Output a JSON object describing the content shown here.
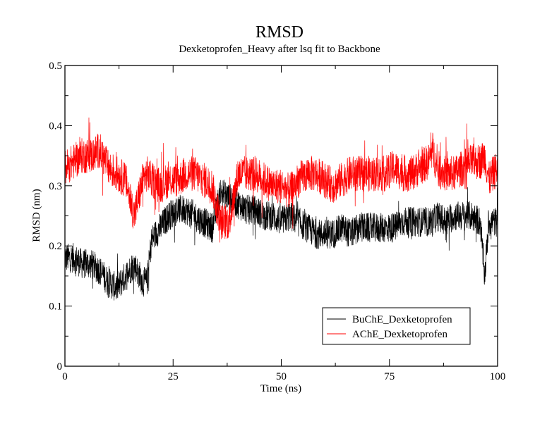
{
  "chart_data": {
    "type": "line",
    "title": "RMSD",
    "subtitle": "Dexketoprofen_Heavy after lsq fit to Backbone",
    "xlabel": "Time (ns)",
    "ylabel": "RMSD (nm)",
    "xlim": [
      0,
      100
    ],
    "ylim": [
      0,
      0.5
    ],
    "xticks": [
      0,
      25,
      50,
      75,
      100
    ],
    "xtick_labels": [
      "0",
      "25",
      "50",
      "75",
      "100"
    ],
    "yticks": [
      0,
      0.1,
      0.2,
      0.3,
      0.4,
      0.5
    ],
    "ytick_labels": [
      "0",
      "0.1",
      "0.2",
      "0.3",
      "0.4",
      "0.5"
    ],
    "grid": false,
    "legend_position": "lower right",
    "x": [
      0,
      2,
      4,
      6,
      8,
      10,
      12,
      14,
      16,
      18,
      19,
      20,
      22,
      24,
      26,
      28,
      30,
      32,
      34,
      36,
      38,
      40,
      42,
      44,
      46,
      48,
      50,
      52,
      54,
      56,
      58,
      60,
      62,
      64,
      66,
      68,
      70,
      72,
      74,
      76,
      78,
      80,
      82,
      84,
      85,
      86,
      88,
      90,
      92,
      94,
      96,
      97,
      98,
      100
    ],
    "series": [
      {
        "name": "BuChE_Dexketoprofen",
        "color": "#000000",
        "values": [
          0.18,
          0.18,
          0.17,
          0.17,
          0.16,
          0.14,
          0.13,
          0.15,
          0.17,
          0.14,
          0.14,
          0.21,
          0.23,
          0.25,
          0.26,
          0.26,
          0.25,
          0.24,
          0.23,
          0.29,
          0.28,
          0.27,
          0.26,
          0.26,
          0.25,
          0.25,
          0.24,
          0.25,
          0.24,
          0.23,
          0.22,
          0.22,
          0.22,
          0.23,
          0.22,
          0.23,
          0.23,
          0.23,
          0.23,
          0.23,
          0.24,
          0.24,
          0.24,
          0.24,
          0.24,
          0.25,
          0.24,
          0.25,
          0.25,
          0.25,
          0.24,
          0.15,
          0.24,
          0.24
        ]
      },
      {
        "name": "AChE_Dexketoprofen",
        "color": "#ff0000",
        "values": [
          0.33,
          0.34,
          0.35,
          0.35,
          0.36,
          0.33,
          0.32,
          0.31,
          0.25,
          0.31,
          0.32,
          0.31,
          0.3,
          0.31,
          0.31,
          0.32,
          0.32,
          0.31,
          0.3,
          0.24,
          0.24,
          0.32,
          0.32,
          0.32,
          0.31,
          0.3,
          0.3,
          0.29,
          0.31,
          0.32,
          0.32,
          0.31,
          0.3,
          0.31,
          0.32,
          0.32,
          0.32,
          0.32,
          0.32,
          0.33,
          0.32,
          0.32,
          0.33,
          0.34,
          0.36,
          0.33,
          0.32,
          0.32,
          0.33,
          0.34,
          0.34,
          0.35,
          0.31,
          0.33
        ]
      }
    ],
    "noise_amplitude": {
      "BuChE_Dexketoprofen": 0.025,
      "AChE_Dexketoprofen": 0.03
    }
  }
}
